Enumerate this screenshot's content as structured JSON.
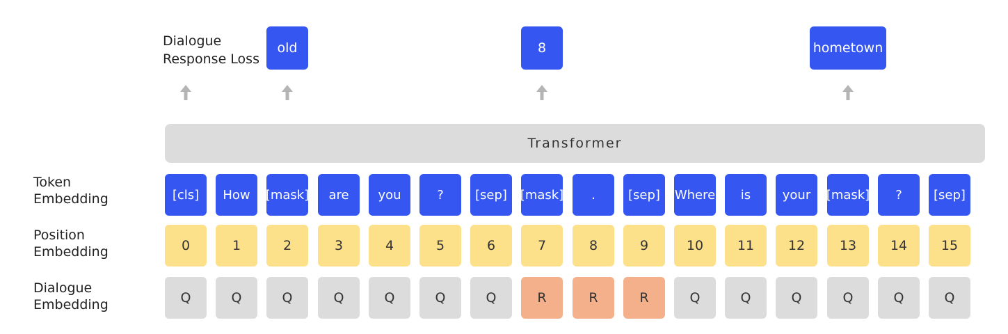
{
  "loss_label": [
    "Dialogue",
    "Response Loss"
  ],
  "outputs": [
    {
      "label": "old",
      "col": 2
    },
    {
      "label": "8",
      "col": 7
    },
    {
      "label": "hometown",
      "col": 13
    }
  ],
  "arrow_cols": [
    0,
    2,
    7,
    13
  ],
  "transformer_label": "Transformer",
  "row_labels": {
    "token": [
      "Token",
      "Embedding"
    ],
    "position": [
      "Position",
      "Embedding"
    ],
    "dialogue": [
      "Dialogue",
      "Embedding"
    ]
  },
  "tokens": [
    "[cls]",
    "How",
    "[mask]",
    "are",
    "you",
    "?",
    "[sep]",
    "[mask]",
    ".",
    "[sep]",
    "Where",
    "is",
    "your",
    "[mask]",
    "?",
    "[sep]"
  ],
  "positions": [
    "0",
    "1",
    "2",
    "3",
    "4",
    "5",
    "6",
    "7",
    "8",
    "9",
    "10",
    "11",
    "12",
    "13",
    "14",
    "15"
  ],
  "dialogue": [
    "Q",
    "Q",
    "Q",
    "Q",
    "Q",
    "Q",
    "Q",
    "R",
    "R",
    "R",
    "Q",
    "Q",
    "Q",
    "Q",
    "Q",
    "Q"
  ],
  "colors": {
    "token": "#3556f0",
    "position": "#fde08a",
    "query": "#dcdcdc",
    "response": "#f4b08a",
    "transformer": "#dcdcdc",
    "arrow": "#b5b5b5"
  }
}
